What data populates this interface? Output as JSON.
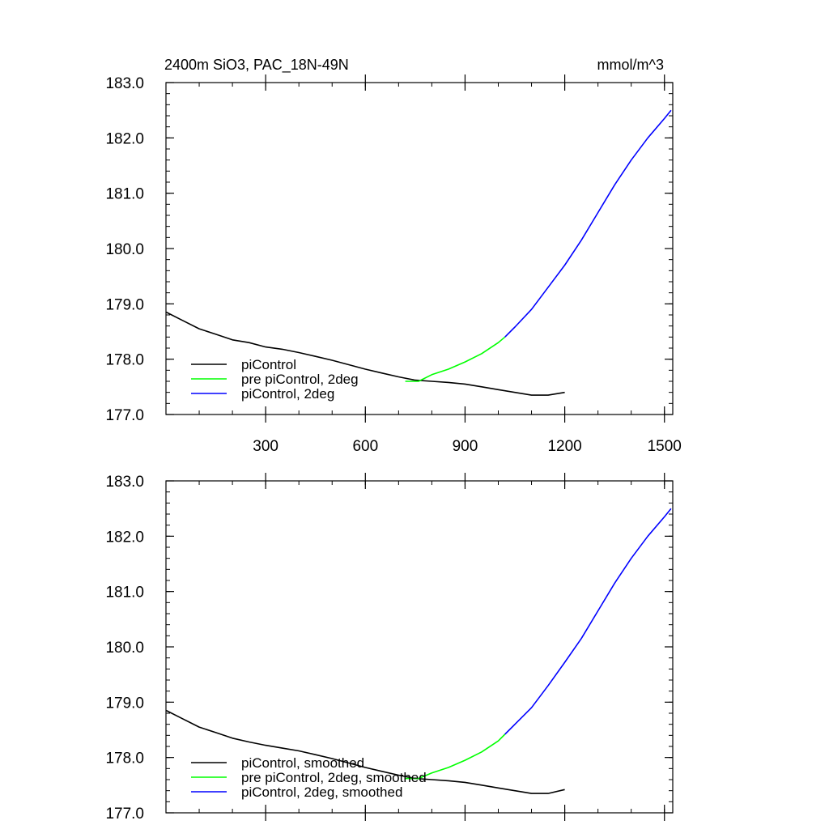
{
  "figure": {
    "title": "2400m SiO3, PAC_18N-49N",
    "units": "mmol/m^3"
  },
  "chart_data": [
    {
      "type": "line",
      "title": "2400m SiO3, PAC_18N-49N",
      "units": "mmol/m^3",
      "xlim": [
        0,
        1525
      ],
      "ylim": [
        177.0,
        183.0
      ],
      "x_ticks": [
        300,
        600,
        900,
        1200,
        1500
      ],
      "y_ticks": [
        177.0,
        178.0,
        179.0,
        180.0,
        181.0,
        182.0,
        183.0
      ],
      "y_tick_labels": [
        "177.0",
        "178.0",
        "179.0",
        "180.0",
        "181.0",
        "182.0",
        "183.0"
      ],
      "x_tick_labels": [
        "300",
        "600",
        "900",
        "1200",
        "1500"
      ],
      "grid": false,
      "legend_position": "lower-left",
      "series": [
        {
          "name": "piControl",
          "color": "#000000",
          "x": [
            1,
            50,
            100,
            150,
            200,
            250,
            300,
            350,
            400,
            450,
            500,
            550,
            600,
            650,
            700,
            750,
            800,
            850,
            900,
            950,
            1000,
            1050,
            1100,
            1150,
            1200
          ],
          "values": [
            178.85,
            178.7,
            178.55,
            178.45,
            178.35,
            178.3,
            178.22,
            178.18,
            178.12,
            178.05,
            177.98,
            177.9,
            177.82,
            177.75,
            177.68,
            177.62,
            177.6,
            177.58,
            177.55,
            177.5,
            177.45,
            177.4,
            177.35,
            177.35,
            177.4
          ]
        },
        {
          "name": "pre piControl, 2deg",
          "color": "#00ff00",
          "x": [
            720,
            760,
            800,
            850,
            900,
            950,
            1000,
            1020
          ],
          "values": [
            177.6,
            177.6,
            177.72,
            177.82,
            177.95,
            178.1,
            178.3,
            178.4
          ]
        },
        {
          "name": "piControl, 2deg",
          "color": "#0000ff",
          "x": [
            1020,
            1050,
            1100,
            1150,
            1200,
            1250,
            1300,
            1350,
            1400,
            1450,
            1500,
            1520
          ],
          "values": [
            178.4,
            178.58,
            178.9,
            179.3,
            179.7,
            180.15,
            180.65,
            181.15,
            181.6,
            182.0,
            182.35,
            182.5
          ]
        }
      ]
    },
    {
      "type": "line",
      "xlim": [
        0,
        1525
      ],
      "ylim": [
        177.0,
        183.0
      ],
      "x_ticks": [
        300,
        600,
        900,
        1200,
        1500
      ],
      "y_ticks": [
        177.0,
        178.0,
        179.0,
        180.0,
        181.0,
        182.0,
        183.0
      ],
      "y_tick_labels": [
        "177.0",
        "178.0",
        "179.0",
        "180.0",
        "181.0",
        "182.0",
        "183.0"
      ],
      "grid": false,
      "legend_position": "lower-left",
      "series": [
        {
          "name": "piControl, smoothed",
          "color": "#000000",
          "x": [
            1,
            50,
            100,
            150,
            200,
            250,
            300,
            350,
            400,
            450,
            500,
            550,
            600,
            650,
            700,
            750,
            800,
            850,
            900,
            950,
            1000,
            1050,
            1100,
            1150,
            1200
          ],
          "values": [
            178.85,
            178.7,
            178.55,
            178.45,
            178.35,
            178.28,
            178.22,
            178.17,
            178.12,
            178.05,
            177.98,
            177.9,
            177.82,
            177.75,
            177.68,
            177.62,
            177.6,
            177.58,
            177.55,
            177.5,
            177.45,
            177.4,
            177.35,
            177.35,
            177.42
          ]
        },
        {
          "name": "pre piControl, 2deg, smoothed",
          "color": "#00ff00",
          "x": [
            720,
            760,
            800,
            850,
            900,
            950,
            1000,
            1020
          ],
          "values": [
            177.62,
            177.62,
            177.72,
            177.82,
            177.95,
            178.1,
            178.3,
            178.42
          ]
        },
        {
          "name": "piControl, 2deg, smoothed",
          "color": "#0000ff",
          "x": [
            1020,
            1050,
            1100,
            1150,
            1200,
            1250,
            1300,
            1350,
            1400,
            1450,
            1500,
            1520
          ],
          "values": [
            178.42,
            178.6,
            178.9,
            179.3,
            179.72,
            180.15,
            180.65,
            181.15,
            181.6,
            182.0,
            182.35,
            182.5
          ]
        }
      ]
    }
  ]
}
